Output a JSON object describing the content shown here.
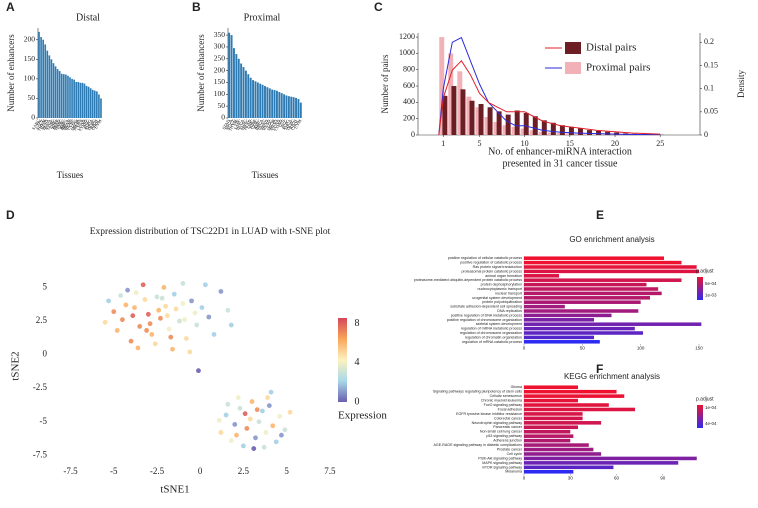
{
  "chart_data": [
    {
      "type": "bar",
      "panel": "A",
      "title": "Distal",
      "ylabel": "Number of enhancers",
      "xlabel": "Tissues",
      "color": "#2e7bb4",
      "categories": [
        "SARC",
        "OV",
        "TGCT",
        "THYM",
        "STAD",
        "BLCA",
        "ESCA",
        "LUSC",
        "LIHC",
        "KIRP",
        "PAAD",
        "HNSC",
        "CESC",
        "KIRC",
        "BRCA",
        "PRAD",
        "READ",
        "UCEC",
        "LGG",
        "SKCM",
        "MESO",
        "UCS",
        "LUAD",
        "COAD",
        "ACC",
        "PCPG",
        "THCA",
        "DLBC",
        "KICH",
        "CHOL",
        "UVM"
      ],
      "values": [
        220,
        207,
        200,
        188,
        172,
        160,
        150,
        140,
        132,
        125,
        120,
        113,
        112,
        111,
        108,
        104,
        100,
        98,
        92,
        92,
        90,
        90,
        88,
        82,
        80,
        76,
        72,
        70,
        68,
        60,
        50
      ],
      "ylim": [
        0,
        230
      ],
      "yticks": [
        0,
        50,
        100,
        150,
        200
      ]
    },
    {
      "type": "bar",
      "panel": "B",
      "title": "Proximal",
      "ylabel": "Number of enhancers",
      "xlabel": "Tissues",
      "color": "#2e7bb4",
      "categories": [
        "STAD",
        "ESCA",
        "TGCT",
        "THYM",
        "OV",
        "SARC",
        "BLCA",
        "LUSC",
        "HNSC",
        "PAAD",
        "LIHC",
        "KIRP",
        "CESC",
        "KIRC",
        "BRCA",
        "UCEC",
        "PRAD",
        "READ",
        "LGG",
        "SKCM",
        "MESO",
        "LUAD",
        "COAD",
        "UCS",
        "ACC",
        "PCPG",
        "THCA",
        "DLBC",
        "KICH",
        "CHOL",
        "UVM"
      ],
      "values": [
        360,
        350,
        295,
        270,
        250,
        230,
        215,
        200,
        185,
        170,
        160,
        155,
        150,
        145,
        140,
        135,
        130,
        125,
        120,
        118,
        115,
        110,
        105,
        100,
        95,
        92,
        90,
        88,
        85,
        80,
        65
      ],
      "ylim": [
        0,
        380
      ],
      "yticks": [
        0,
        50,
        100,
        150,
        200,
        250,
        300,
        350
      ]
    },
    {
      "type": "bar",
      "panel": "C",
      "ylabel": "Number of pairs",
      "y2label": "Density",
      "xlabel": [
        "No. of enhancer-miRNA interaction",
        "presented in 31 cancer tissue"
      ],
      "x": [
        1,
        2,
        3,
        4,
        5,
        6,
        7,
        8,
        9,
        10,
        11,
        12,
        13,
        14,
        15,
        16,
        17,
        18,
        19,
        20,
        21,
        22,
        23,
        24,
        25
      ],
      "density_x": [
        0.5,
        1,
        2,
        3,
        4,
        5,
        6,
        7,
        8,
        9,
        10,
        11,
        12,
        14,
        16,
        18,
        20,
        22,
        25
      ],
      "series": [
        {
          "name": "Proximal pairs",
          "color": "#f2b1b7",
          "line_color": "#2a2ae0",
          "values": [
            1200,
            1000,
            780,
            470,
            340,
            220,
            160,
            120,
            100,
            80,
            60,
            40,
            30,
            25,
            20,
            15,
            10,
            8,
            5,
            4,
            3,
            2,
            1,
            1,
            1
          ],
          "density": [
            0,
            0.1,
            0.2,
            0.21,
            0.16,
            0.11,
            0.07,
            0.05,
            0.03,
            0.02,
            0.02,
            0.015,
            0.01,
            0.006,
            0.004,
            0.003,
            0.002,
            0.001,
            0.001
          ]
        },
        {
          "name": "Distal pairs",
          "color": "#6b1f24",
          "line_color": "#e0202a",
          "values": [
            480,
            600,
            560,
            420,
            380,
            340,
            290,
            250,
            300,
            270,
            230,
            180,
            150,
            120,
            100,
            80,
            60,
            50,
            40,
            30,
            20,
            15,
            10,
            5,
            3
          ],
          "density": [
            0,
            0.08,
            0.14,
            0.16,
            0.13,
            0.09,
            0.07,
            0.06,
            0.05,
            0.05,
            0.05,
            0.04,
            0.03,
            0.02,
            0.015,
            0.01,
            0.007,
            0.004,
            0.002
          ]
        }
      ],
      "xlim": [
        -1.8,
        29.4
      ],
      "xticks": [
        1,
        5,
        10,
        15,
        20,
        25
      ],
      "ylim": [
        0,
        1250
      ],
      "yticks": [
        0,
        200,
        400,
        600,
        800,
        1000,
        1200
      ],
      "y2lim": [
        0,
        0.22
      ],
      "y2ticks": [
        0,
        0.05,
        0.1,
        0.15,
        0.2
      ]
    },
    {
      "type": "scatter",
      "panel": "D",
      "title": "Expression distribution of TSC22D1 in LUAD with t-SNE plot",
      "xlabel": "tSNE1",
      "ylabel": "tSNE2",
      "colorbar_label": "Expression",
      "x": [
        -5,
        -4.5,
        -4.2,
        -3.8,
        -3.5,
        -3.2,
        -3,
        -2.8,
        -2.5,
        -2.3,
        -2,
        -1.8,
        -1.5,
        -1.2,
        -1,
        -0.8,
        -0.5,
        -0.2,
        0.1,
        0.5,
        -4.8,
        -4,
        -3.6,
        -2.6,
        -1.6,
        -5.3,
        -4.6,
        -3.3,
        -2.1,
        -1,
        0.3,
        1.2,
        1.6,
        1.8,
        -0.6,
        -3.9,
        -2.9,
        -1.9,
        -0.9,
        -4.3,
        -3.1,
        -2.4,
        -1.4,
        0.8,
        -5.5,
        -3.7,
        -2.2,
        -0.3,
        -1.7,
        -0.1,
        1.2,
        1.5,
        1.8,
        2,
        2.3,
        2.5,
        2.7,
        2.9,
        3,
        3.2,
        3.4,
        3.6,
        3.8,
        4,
        4.2,
        4.4,
        4.6,
        4.9,
        5.2,
        2.2,
        3.1,
        3.7,
        1.6,
        4.1,
        2.6,
        3.3,
        2.1,
        4.7,
        1.1,
        3.9
      ],
      "y": [
        3.2,
        2.6,
        4.8,
        3.5,
        2.1,
        4.1,
        3,
        1.5,
        4.3,
        2.7,
        3.6,
        1.9,
        4.5,
        2.5,
        3.8,
        1.2,
        4,
        2.2,
        3.5,
        2.8,
        1.8,
        1,
        0.5,
        0.8,
        0.4,
        4,
        4.4,
        5.2,
        5,
        5.3,
        5.2,
        4.7,
        3.3,
        2.2,
        0.2,
        2.9,
        2.3,
        2.9,
        2.6,
        3.7,
        1.8,
        3.3,
        3.4,
        1.5,
        2.4,
        4.6,
        4.2,
        3.1,
        1.3,
        -1.2,
        -5.8,
        -4.5,
        -6.4,
        -5.2,
        -4,
        -6.8,
        -5.5,
        -4.8,
        -3.5,
        -6.2,
        -5,
        -4.2,
        -5.8,
        -3.8,
        -5.3,
        -6.5,
        -4.6,
        -5.6,
        -4.3,
        -3.2,
        -7,
        -6.9,
        -3.7,
        -2.8,
        -4.4,
        -4.1,
        -6,
        -6,
        -4.9,
        -3.2
      ],
      "z": [
        7,
        7,
        1,
        6,
        7,
        5,
        8,
        6,
        3,
        7,
        5,
        4,
        2,
        3,
        4,
        5,
        1,
        3,
        2,
        1,
        6,
        7,
        6,
        5,
        6,
        2,
        3,
        8,
        6,
        3,
        2,
        1,
        3,
        2,
        5,
        8,
        7,
        5,
        4,
        6,
        7,
        6,
        5,
        2,
        5,
        4,
        3,
        4,
        7,
        0,
        5,
        2,
        4,
        1,
        3,
        2,
        7,
        5,
        6,
        1,
        3,
        2,
        4,
        1,
        6,
        2,
        4,
        3,
        5,
        4,
        0,
        3,
        3,
        2,
        8,
        7,
        6,
        1,
        4,
        5
      ],
      "colors": [
        "#6a5fb0",
        "#a8d8e8",
        "#fdf2c0",
        "#f9a65a",
        "#d6465c"
      ],
      "clim": [
        0,
        8.6
      ],
      "cticks": [
        0,
        4,
        8
      ],
      "xlim": [
        -8.4,
        7.8
      ],
      "xticks": [
        -7.5,
        -5,
        -2.5,
        0,
        2.5,
        5,
        7.5
      ],
      "ylim": [
        -8,
        6.3
      ],
      "yticks": [
        -7.5,
        -5,
        -2.5,
        0,
        2.5,
        5
      ]
    },
    {
      "type": "barh",
      "panel": "E",
      "title": "GO enrichment analysis",
      "legend_title": "p.adjust",
      "low_color": "#ee1230",
      "high_color": "#2d2af2",
      "categories": [
        "positive regulation of cellular catabolic process",
        "positive regulation of catabolic process",
        "Ras protein signal transduction",
        "proteasomal protein catabolic process",
        "animal organ formation",
        "proteasome-mediated ubiquitin-dependent protein catabolic process",
        "protein dephosphorylation",
        "nucleocytoplasmic transport",
        "nuclear transport",
        "urogenital system development",
        "protein polyubiquitination",
        "substrate adhesion-dependent cell spreading",
        "DNA replication",
        "positive regulation of DNA metabolic process",
        "positive regulation of chromosome organization",
        "skeletal system development",
        "regulation of mRNA metabolic process",
        "regulation of chromosome organization",
        "regulation of chromatin organization",
        "regulation of mRNA catabolic process"
      ],
      "values": [
        120,
        135,
        148,
        150,
        30,
        135,
        105,
        115,
        118,
        108,
        100,
        35,
        98,
        75,
        60,
        152,
        95,
        102,
        60,
        65
      ],
      "p_adjust": [
        0.0002,
        0.0002,
        0.00025,
        0.0003,
        0.0003,
        0.00035,
        0.0004,
        0.00045,
        0.0005,
        0.0005,
        0.00055,
        0.0006,
        0.0006,
        0.0007,
        0.0008,
        0.00085,
        0.0009,
        0.00095,
        0.001,
        0.0012
      ],
      "clim": [
        0.0002,
        0.0012
      ],
      "cticks": [
        {
          "value": 0.0005,
          "label": "5e-04"
        },
        {
          "value": 0.001,
          "label": "1e-03"
        }
      ],
      "xlim": [
        0,
        156
      ],
      "xticks": [
        0,
        50,
        100,
        150
      ]
    },
    {
      "type": "barh",
      "panel": "F",
      "title": "KEGG enrichment analysis",
      "legend_title": "p.adjust",
      "low_color": "#ee1230",
      "high_color": "#2d2af2",
      "categories": [
        "Glioma",
        "Signaling pathways regulating pluripotency of stem cells",
        "Cellular senescence",
        "Chronic myeloid leukemia",
        "FoxO signaling pathway",
        "Focal adhesion",
        "EGFR tyrosine kinase inhibitor resistance",
        "Colorectal cancer",
        "Neurotrophin signaling pathway",
        "Pancreatic cancer",
        "Non-small cell lung cancer",
        "p53 signaling pathway",
        "Adherens junction",
        "AGE-RAGE signaling pathway in diabetic complications",
        "Prostate cancer",
        "Cell cycle",
        "PI3K-Akt signaling pathway",
        "MAPK signaling pathway",
        "mTOR signaling pathway",
        "Melanoma"
      ],
      "values": [
        35,
        60,
        65,
        35,
        55,
        72,
        38,
        38,
        50,
        35,
        30,
        32,
        30,
        42,
        45,
        50,
        112,
        100,
        58,
        32
      ],
      "p_adjust": [
        5e-05,
        5e-05,
        6e-05,
        7e-05,
        8e-05,
        9e-05,
        0.0001,
        0.00011,
        0.00012,
        0.00013,
        0.00015,
        0.00017,
        0.00019,
        0.00021,
        0.00023,
        0.00026,
        0.0003,
        0.00034,
        0.00038,
        0.00048
      ],
      "clim": [
        5e-05,
        0.00048
      ],
      "cticks": [
        {
          "value": 0.0001,
          "label": "1e-04"
        },
        {
          "value": 0.0004,
          "label": "4e-04"
        }
      ],
      "xlim": [
        0,
        118
      ],
      "xticks": [
        0,
        30,
        60,
        90
      ]
    }
  ]
}
